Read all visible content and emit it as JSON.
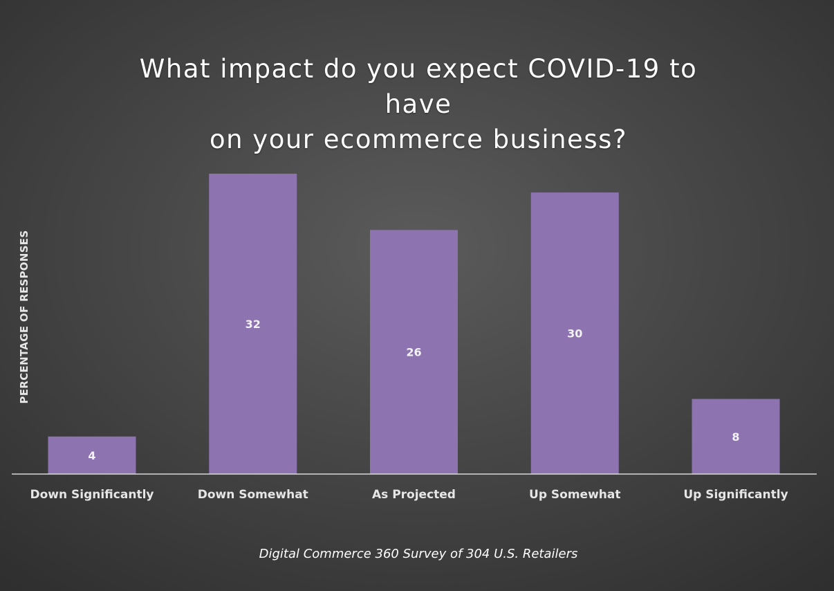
{
  "chart_data": {
    "type": "bar",
    "title": "What impact do you expect COVID-19 to have on your ecommerce business?",
    "ylabel": "PERCENTAGE OF RESPONSES",
    "xlabel": "",
    "caption": "Digital Commerce 360 Survey of 304 U.S. Retailers",
    "categories": [
      "Down Significantly",
      "Down Somewhat",
      "As Projected",
      "Up Somewhat",
      "Up Significantly"
    ],
    "values": [
      4,
      32,
      26,
      30,
      8
    ],
    "ylim": [
      0,
      32
    ],
    "grid": false,
    "legend": "none",
    "colors": {
      "bar": "#8e73b1",
      "baseline": "#d9d9d9",
      "text": "#ffffff",
      "data_label": "#f2f2f2"
    }
  }
}
